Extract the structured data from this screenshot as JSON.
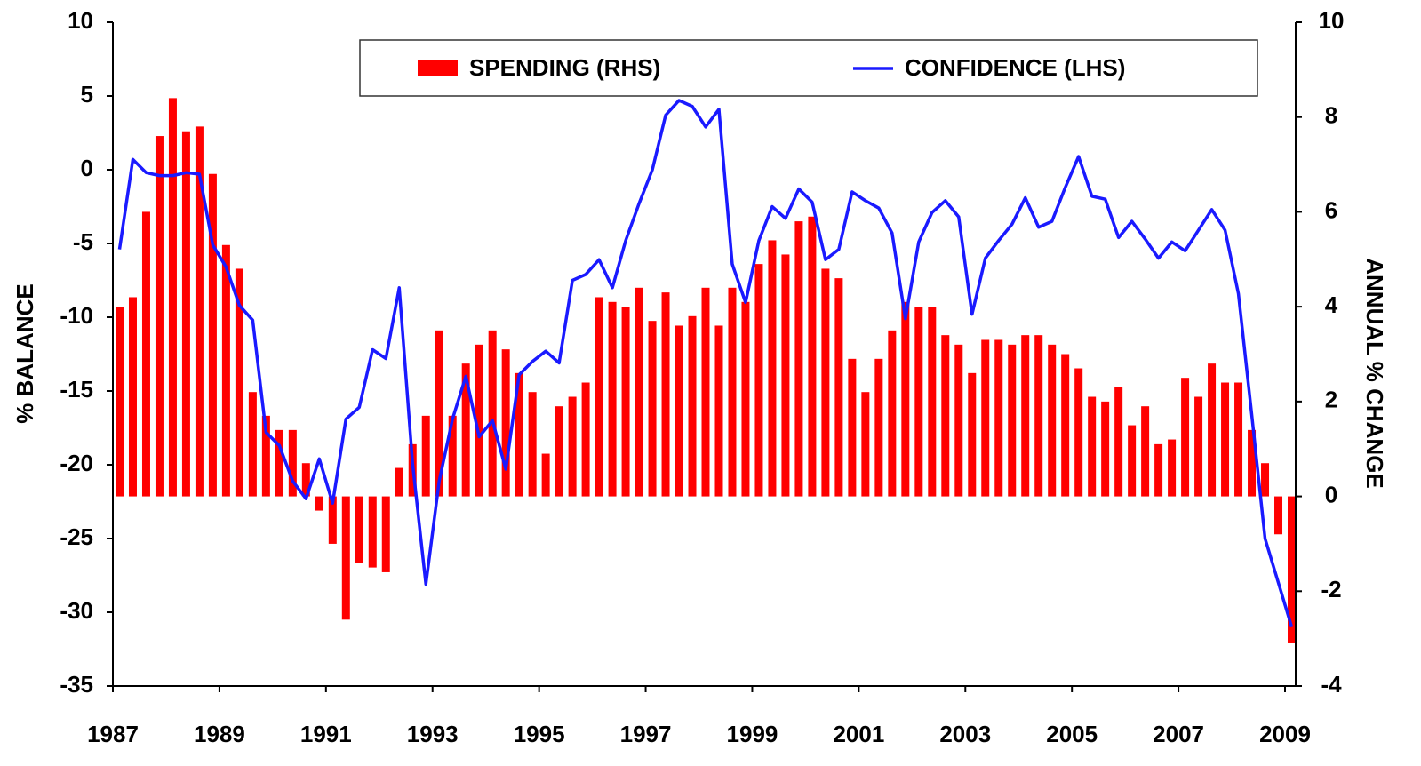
{
  "chart_data": {
    "type": "bar+line",
    "y_label": "% BALANCE",
    "y2_label": "ANNUAL % CHANGE",
    "xlim": [
      1987,
      2009.2
    ],
    "xticks": [
      1987,
      1989,
      1991,
      1993,
      1995,
      1997,
      1999,
      2001,
      2003,
      2005,
      2007,
      2009
    ],
    "ylim": [
      -35,
      10
    ],
    "yticks": [
      -35,
      -30,
      -25,
      -20,
      -15,
      -10,
      -5,
      0,
      5,
      10
    ],
    "y2lim": [
      -4,
      10
    ],
    "y2ticks": [
      -4,
      -2,
      0,
      2,
      4,
      6,
      8,
      10
    ],
    "legend": "top",
    "x": [
      1987.125,
      1987.375,
      1987.625,
      1987.875,
      1988.125,
      1988.375,
      1988.625,
      1988.875,
      1989.125,
      1989.375,
      1989.625,
      1989.875,
      1990.125,
      1990.375,
      1990.625,
      1990.875,
      1991.125,
      1991.375,
      1991.625,
      1991.875,
      1992.125,
      1992.375,
      1992.625,
      1992.875,
      1993.125,
      1993.375,
      1993.625,
      1993.875,
      1994.125,
      1994.375,
      1994.625,
      1994.875,
      1995.125,
      1995.375,
      1995.625,
      1995.875,
      1996.125,
      1996.375,
      1996.625,
      1996.875,
      1997.125,
      1997.375,
      1997.625,
      1997.875,
      1998.125,
      1998.375,
      1998.625,
      1998.875,
      1999.125,
      1999.375,
      1999.625,
      1999.875,
      2000.125,
      2000.375,
      2000.625,
      2000.875,
      2001.125,
      2001.375,
      2001.625,
      2001.875,
      2002.125,
      2002.375,
      2002.625,
      2002.875,
      2003.125,
      2003.375,
      2003.625,
      2003.875,
      2004.125,
      2004.375,
      2004.625,
      2004.875,
      2005.125,
      2005.375,
      2005.625,
      2005.875,
      2006.125,
      2006.375,
      2006.625,
      2006.875,
      2007.125,
      2007.375,
      2007.625,
      2007.875,
      2008.125,
      2008.375,
      2008.625,
      2008.875,
      2009.125
    ],
    "series": [
      {
        "name": "SPENDING (RHS)",
        "type": "bar",
        "axis": "y2",
        "color": "#ff0000",
        "values": [
          4.0,
          4.2,
          6.0,
          7.6,
          8.4,
          7.7,
          7.8,
          6.8,
          5.3,
          4.8,
          2.2,
          1.7,
          1.4,
          1.4,
          0.7,
          -0.3,
          -1.0,
          -2.6,
          -1.4,
          -1.5,
          -1.6,
          0.6,
          1.1,
          1.7,
          3.5,
          1.7,
          2.8,
          3.2,
          3.5,
          3.1,
          2.6,
          2.2,
          0.9,
          1.9,
          2.1,
          2.4,
          4.2,
          4.1,
          4.0,
          4.4,
          3.7,
          4.3,
          3.6,
          3.8,
          4.4,
          3.6,
          4.4,
          4.1,
          4.9,
          5.4,
          5.1,
          5.8,
          5.9,
          4.8,
          4.6,
          2.9,
          2.2,
          2.9,
          3.5,
          4.1,
          4.0,
          4.0,
          3.4,
          3.2,
          2.6,
          3.3,
          3.3,
          3.2,
          3.4,
          3.4,
          3.2,
          3.0,
          2.7,
          2.1,
          2.0,
          2.3,
          1.5,
          1.9,
          1.1,
          1.2,
          2.5,
          2.1,
          2.8,
          2.4,
          2.4,
          1.4,
          0.7,
          -0.8,
          -3.1
        ]
      },
      {
        "name": "CONFIDENCE (LHS)",
        "type": "line",
        "color": "#1a1aff",
        "values": [
          -5.4,
          0.7,
          -0.2,
          -0.4,
          -0.4,
          -0.2,
          -0.3,
          -5.1,
          -6.6,
          -9.2,
          -10.2,
          -17.8,
          -18.7,
          -21.1,
          -22.3,
          -19.6,
          -22.6,
          -16.9,
          -16.1,
          -12.2,
          -12.8,
          -8.0,
          -19.9,
          -28.1,
          -21.1,
          -16.9,
          -14.0,
          -18.1,
          -17.0,
          -20.3,
          -13.9,
          -13.0,
          -12.3,
          -13.1,
          -7.5,
          -7.1,
          -6.1,
          -8.0,
          -4.8,
          -2.3,
          0.0,
          3.7,
          4.7,
          4.3,
          2.9,
          4.1,
          -6.4,
          -9.0,
          -4.8,
          -2.5,
          -3.3,
          -1.3,
          -2.2,
          -6.1,
          -5.4,
          -1.5,
          -2.1,
          -2.6,
          -4.3,
          -10.1,
          -4.9,
          -2.9,
          -2.1,
          -3.2,
          -9.8,
          -6.0,
          -4.8,
          -3.7,
          -1.9,
          -3.9,
          -3.5,
          -1.2,
          0.9,
          -1.8,
          -2.0,
          -4.6,
          -3.5,
          -4.7,
          -6.0,
          -4.9,
          -5.5,
          -4.1,
          -2.7,
          -4.1,
          -8.4,
          -16.6,
          -25.0,
          -28.0,
          -31.0
        ]
      }
    ]
  }
}
